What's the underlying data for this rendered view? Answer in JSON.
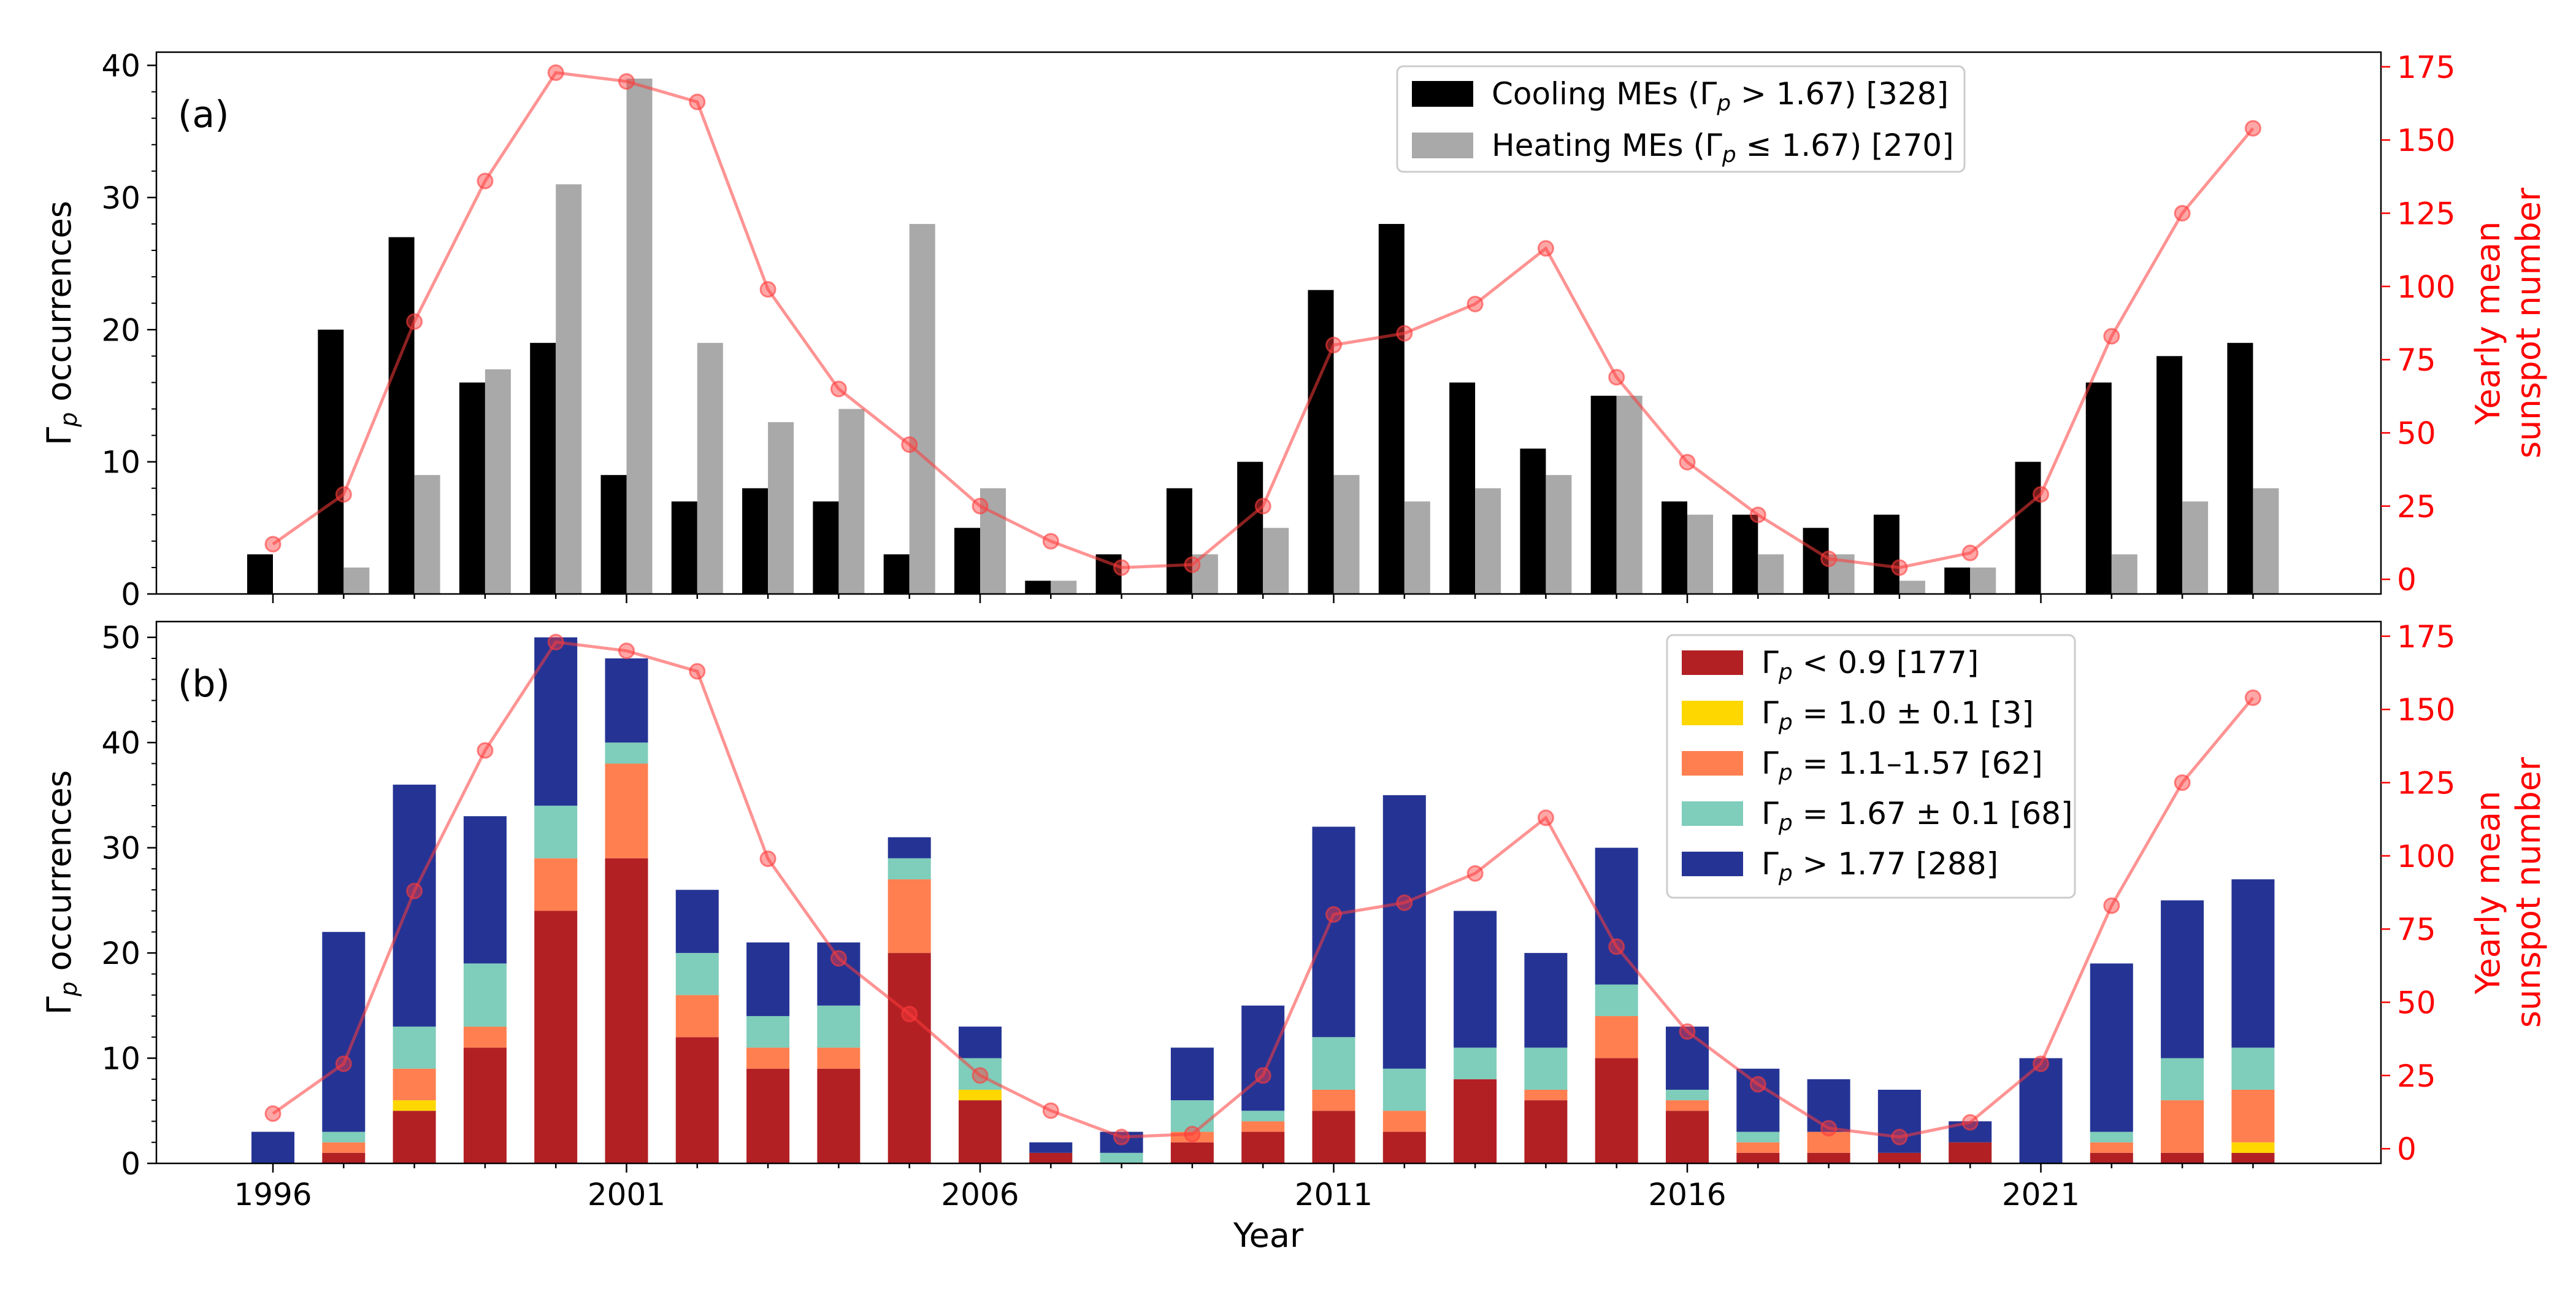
{
  "chart_data": [
    {
      "type": "bar",
      "panel_label": "(a)",
      "title": "",
      "xlabel": "",
      "ylabel": "Γp occurrences",
      "ylabel_parts": {
        "symbol": "Γ",
        "sub": "p",
        "rest": " occurrences"
      },
      "y2label_lines": [
        "Yearly mean",
        "sunspot number"
      ],
      "ylim": [
        0,
        41
      ],
      "y2lim": [
        -5,
        180
      ],
      "yticks": [
        "0",
        "10",
        "20",
        "30",
        "40"
      ],
      "y2ticks": [
        "0",
        "25",
        "50",
        "75",
        "100",
        "125",
        "150",
        "175"
      ],
      "x": [
        1996,
        1997,
        1998,
        1999,
        2000,
        2001,
        2002,
        2003,
        2004,
        2005,
        2006,
        2007,
        2008,
        2009,
        2010,
        2011,
        2012,
        2013,
        2014,
        2015,
        2016,
        2017,
        2018,
        2019,
        2020,
        2021,
        2022,
        2023,
        2024
      ],
      "series": [
        {
          "name": "Cooling MEs (Γp > 1.67) [328]",
          "legend": {
            "prefix": "Cooling MEs (",
            "sym": "Γ",
            "sub": "p",
            "rest": " > 1.67) [328]"
          },
          "color": "#000000",
          "values": [
            3,
            20,
            27,
            16,
            19,
            9,
            7,
            8,
            7,
            3,
            5,
            1,
            3,
            8,
            10,
            23,
            28,
            16,
            11,
            15,
            7,
            6,
            5,
            6,
            2,
            10,
            16,
            18,
            19
          ]
        },
        {
          "name": "Heating MEs (Γp ≤ 1.67) [270]",
          "legend": {
            "prefix": "Heating MEs (",
            "sym": "Γ",
            "sub": "p",
            "rest": " ≤ 1.67) [270]"
          },
          "color": "#a9a9a9",
          "values": [
            0,
            2,
            9,
            17,
            31,
            39,
            19,
            13,
            14,
            28,
            8,
            1,
            0,
            3,
            5,
            9,
            7,
            8,
            9,
            15,
            6,
            3,
            3,
            1,
            2,
            0,
            3,
            7,
            8
          ]
        }
      ],
      "sunspot": {
        "name": "Yearly mean sunspot number",
        "color": "#ff3b3b",
        "values": [
          12,
          29,
          88,
          136,
          173,
          170,
          163,
          99,
          65,
          46,
          25,
          13,
          4,
          5,
          25,
          80,
          84,
          94,
          113,
          69,
          40,
          22,
          7,
          4,
          9,
          29,
          83,
          125,
          154
        ]
      }
    },
    {
      "type": "stacked_bar",
      "panel_label": "(b)",
      "title": "",
      "xlabel": "Year",
      "ylabel": "Γp occurrences",
      "ylabel_parts": {
        "symbol": "Γ",
        "sub": "p",
        "rest": " occurrences"
      },
      "y2label_lines": [
        "Yearly mean",
        "sunspot number"
      ],
      "ylim": [
        0,
        51.5
      ],
      "y2lim": [
        -5,
        180
      ],
      "yticks": [
        "0",
        "10",
        "20",
        "30",
        "40",
        "50"
      ],
      "y2ticks": [
        "0",
        "25",
        "50",
        "75",
        "100",
        "125",
        "150",
        "175"
      ],
      "xticks": [
        "1996",
        "2001",
        "2006",
        "2011",
        "2016",
        "2021"
      ],
      "x": [
        1996,
        1997,
        1998,
        1999,
        2000,
        2001,
        2002,
        2003,
        2004,
        2005,
        2006,
        2007,
        2008,
        2009,
        2010,
        2011,
        2012,
        2013,
        2014,
        2015,
        2016,
        2017,
        2018,
        2019,
        2020,
        2021,
        2022,
        2023,
        2024
      ],
      "series": [
        {
          "name": "Γp < 0.9 [177]",
          "legend": {
            "prefix": "",
            "sym": "Γ",
            "sub": "p",
            "rest": " < 0.9 [177]"
          },
          "color": "#b22024",
          "values": [
            0,
            1,
            5,
            11,
            24,
            29,
            12,
            9,
            9,
            20,
            6,
            1,
            0,
            2,
            3,
            5,
            3,
            8,
            6,
            10,
            5,
            1,
            1,
            1,
            2,
            0,
            1,
            1,
            1
          ]
        },
        {
          "name": "Γp = 1.0 ± 0.1 [3]",
          "legend": {
            "prefix": "",
            "sym": "Γ",
            "sub": "p",
            "rest": " = 1.0 ± 0.1 [3]"
          },
          "color": "#ffd700",
          "values": [
            0,
            0,
            1,
            0,
            0,
            0,
            0,
            0,
            0,
            0,
            1,
            0,
            0,
            0,
            0,
            0,
            0,
            0,
            0,
            0,
            0,
            0,
            0,
            0,
            0,
            0,
            0,
            0,
            1
          ]
        },
        {
          "name": "Γp = 1.1–1.57 [62]",
          "legend": {
            "prefix": "",
            "sym": "Γ",
            "sub": "p",
            "rest": " = 1.1–1.57 [62]"
          },
          "color": "#ff7f50",
          "values": [
            0,
            1,
            3,
            2,
            5,
            9,
            4,
            2,
            2,
            7,
            0,
            0,
            0,
            1,
            1,
            2,
            2,
            0,
            1,
            4,
            1,
            1,
            2,
            0,
            0,
            0,
            1,
            5,
            5
          ]
        },
        {
          "name": "Γp = 1.67 ± 0.1 [68]",
          "legend": {
            "prefix": "",
            "sym": "Γ",
            "sub": "p",
            "rest": " = 1.67 ± 0.1 [68]"
          },
          "color": "#7fcdbb",
          "values": [
            0,
            1,
            4,
            6,
            5,
            2,
            4,
            3,
            4,
            2,
            3,
            0,
            1,
            3,
            1,
            5,
            4,
            3,
            4,
            3,
            1,
            1,
            0,
            0,
            0,
            0,
            1,
            4,
            4
          ]
        },
        {
          "name": "Γp > 1.77 [288]",
          "legend": {
            "prefix": "",
            "sym": "Γ",
            "sub": "p",
            "rest": " > 1.77 [288]"
          },
          "color": "#253494",
          "values": [
            3,
            19,
            23,
            14,
            16,
            8,
            6,
            7,
            6,
            2,
            3,
            1,
            2,
            5,
            10,
            20,
            26,
            13,
            9,
            13,
            6,
            6,
            5,
            6,
            2,
            10,
            16,
            15,
            16
          ]
        }
      ],
      "sunspot": {
        "name": "Yearly mean sunspot number",
        "color": "#ff3b3b",
        "values": [
          12,
          29,
          88,
          136,
          173,
          170,
          163,
          99,
          65,
          46,
          25,
          13,
          4,
          5,
          25,
          80,
          84,
          94,
          113,
          69,
          40,
          22,
          7,
          4,
          9,
          29,
          83,
          125,
          154
        ]
      }
    }
  ]
}
